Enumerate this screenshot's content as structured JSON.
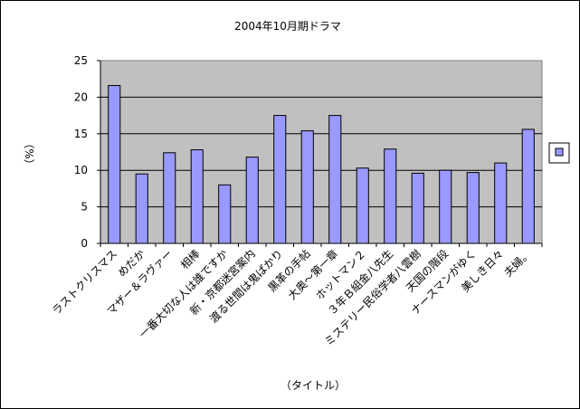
{
  "chart_data": {
    "type": "bar",
    "title": "2004年10月期ドラマ",
    "xlabel": "（タイトル）",
    "ylabel": "（%）",
    "ylim": [
      0,
      25
    ],
    "yticks": [
      0,
      5,
      10,
      15,
      20,
      25
    ],
    "grid": true,
    "legend": "right",
    "colors": {
      "plot_background": "#c0c0c0",
      "bar_fill": "#9999ff",
      "bar_stroke": "#000000",
      "gridline": "#000000"
    },
    "categories": [
      "ラストクリスマス",
      "めだか",
      "マザー＆ラヴァー",
      "相棒",
      "一番大切な人は誰ですか",
      "新・京都迷宮案内",
      "渡る世間は鬼ばかり",
      "黒革の手帖",
      "大奥～第一章",
      "ホットマン２",
      "３年Ｂ組金八先生",
      "ミステリー民俗学者八雲樹",
      "天国の階段",
      "ナースマンがゆく",
      "美しき日々",
      "夫婦。"
    ],
    "series": [
      {
        "values": [
          21.6,
          9.5,
          12.4,
          12.8,
          8.0,
          11.8,
          17.5,
          15.4,
          17.5,
          10.3,
          12.9,
          9.6,
          10.0,
          9.7,
          11.0,
          15.6
        ]
      }
    ]
  }
}
